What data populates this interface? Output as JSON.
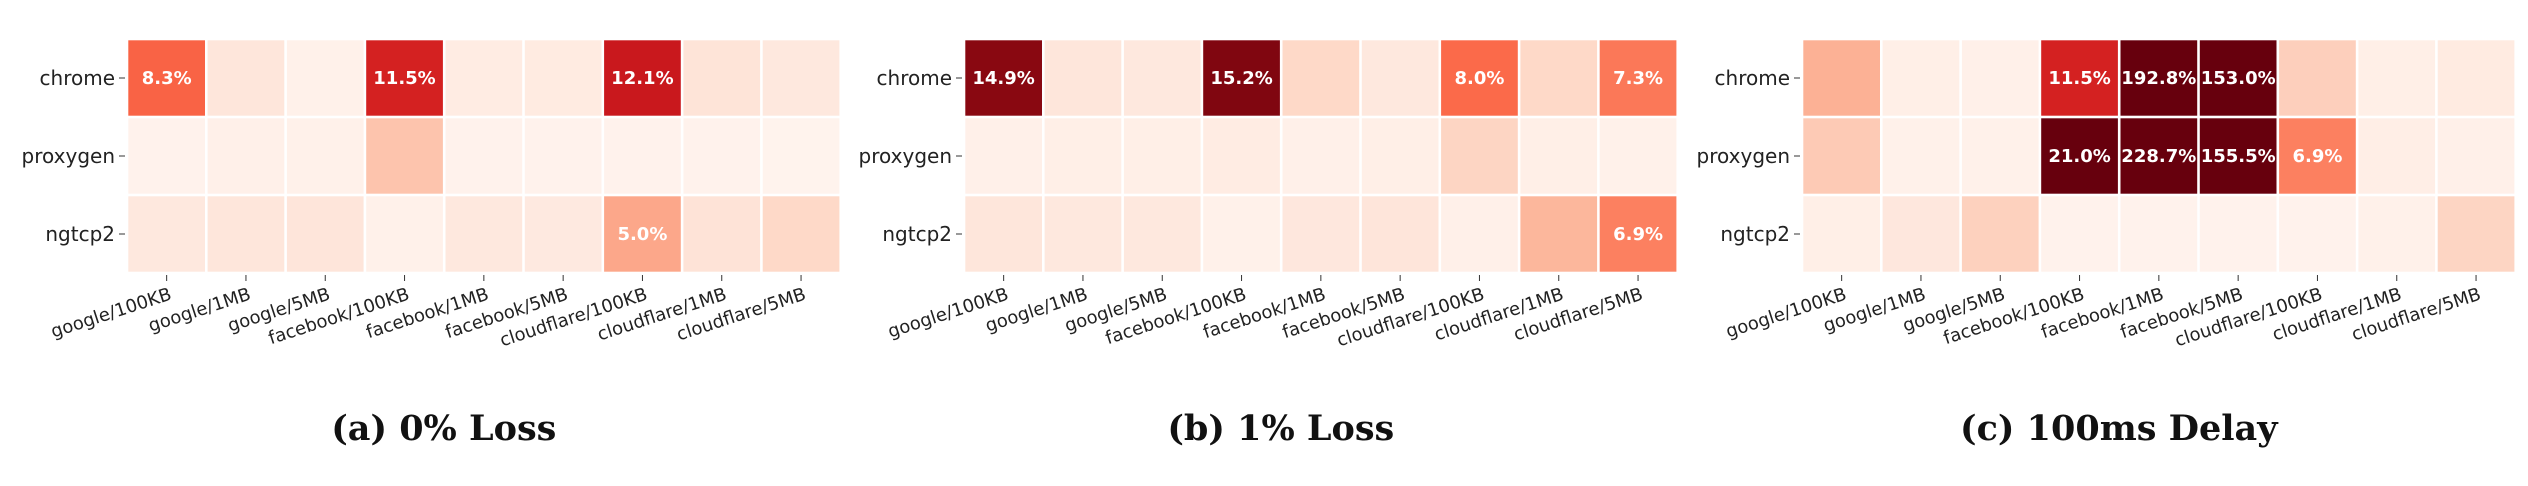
{
  "chart_data": [
    {
      "type": "heatmap",
      "caption": "(a) 0% Loss",
      "rows": [
        "chrome",
        "proxygen",
        "ngtcp2"
      ],
      "columns": [
        "google/100KB",
        "google/1MB",
        "google/5MB",
        "facebook/100KB",
        "facebook/1MB",
        "facebook/5MB",
        "cloudflare/100KB",
        "cloudflare/1MB",
        "cloudflare/5MB"
      ],
      "values": [
        [
          8.3,
          1.4,
          0.4,
          11.5,
          0.9,
          1.0,
          12.1,
          1.6,
          1.2
        ],
        [
          0.3,
          0.5,
          0.4,
          3.5,
          0.3,
          0.3,
          0.3,
          0.3,
          0.2
        ],
        [
          1.2,
          1.4,
          1.5,
          0.4,
          1.2,
          1.1,
          5.0,
          1.7,
          2.4
        ]
      ],
      "labels": [
        [
          "8.3%",
          "",
          "",
          "11.5%",
          "",
          "",
          "12.1%",
          "",
          ""
        ],
        [
          "",
          "",
          "",
          "",
          "",
          "",
          "",
          "",
          ""
        ],
        [
          "",
          "",
          "",
          "",
          "",
          "",
          "5.0%",
          "",
          ""
        ]
      ]
    },
    {
      "type": "heatmap",
      "caption": "(b) 1% Loss",
      "rows": [
        "chrome",
        "proxygen",
        "ngtcp2"
      ],
      "columns": [
        "google/100KB",
        "google/1MB",
        "google/5MB",
        "facebook/100KB",
        "facebook/1MB",
        "facebook/5MB",
        "cloudflare/100KB",
        "cloudflare/1MB",
        "cloudflare/5MB"
      ],
      "values": [
        [
          14.9,
          1.4,
          1.2,
          15.2,
          2.4,
          1.2,
          8.0,
          2.4,
          7.3
        ],
        [
          0.5,
          0.6,
          0.6,
          0.9,
          0.5,
          0.6,
          2.6,
          0.6,
          0.4
        ],
        [
          1.4,
          1.2,
          1.2,
          0.4,
          1.3,
          1.5,
          0.5,
          4.2,
          6.9
        ]
      ],
      "labels": [
        [
          "14.9%",
          "",
          "",
          "15.2%",
          "",
          "",
          "8.0%",
          "",
          "7.3%"
        ],
        [
          "",
          "",
          "",
          "",
          "",
          "",
          "",
          "",
          ""
        ],
        [
          "",
          "",
          "",
          "",
          "",
          "",
          "",
          "",
          "6.9%"
        ]
      ]
    },
    {
      "type": "heatmap",
      "caption": "(c) 100ms Delay",
      "rows": [
        "chrome",
        "proxygen",
        "ngtcp2"
      ],
      "columns": [
        "google/100KB",
        "google/1MB",
        "google/5MB",
        "facebook/100KB",
        "facebook/1MB",
        "facebook/5MB",
        "cloudflare/100KB",
        "cloudflare/1MB",
        "cloudflare/5MB"
      ],
      "values": [
        [
          4.5,
          0.6,
          0.5,
          11.5,
          192.8,
          153.0,
          2.9,
          0.6,
          1.0
        ],
        [
          3.2,
          0.4,
          0.4,
          21.0,
          228.7,
          155.5,
          6.9,
          0.7,
          0.5
        ],
        [
          0.6,
          1.3,
          2.8,
          0.3,
          0.3,
          0.3,
          0.3,
          0.4,
          2.6
        ]
      ],
      "labels": [
        [
          "",
          "",
          "",
          "11.5%",
          "192.8%",
          "153.0%",
          "",
          "",
          ""
        ],
        [
          "",
          "",
          "",
          "21.0%",
          "228.7%",
          "155.5%",
          "6.9%",
          "",
          ""
        ],
        [
          "",
          "",
          "",
          "",
          "",
          "",
          "",
          "",
          ""
        ]
      ]
    }
  ]
}
